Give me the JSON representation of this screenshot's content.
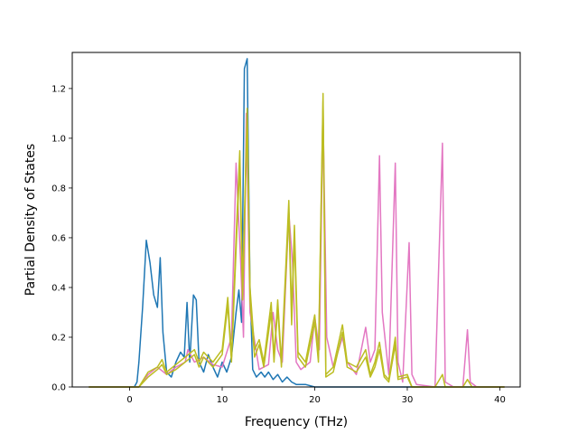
{
  "chart_data": {
    "type": "line",
    "title": "",
    "xlabel": "Frequency (THz)",
    "ylabel": "Partial Density of States",
    "xlim": [
      -6.2,
      42.2
    ],
    "ylim": [
      0,
      1.345
    ],
    "grid": false,
    "legend": "none",
    "x_ticks": [
      0,
      10,
      20,
      30,
      40
    ],
    "y_ticks": [
      0.0,
      0.2,
      0.4,
      0.6,
      0.8,
      1.0,
      1.2
    ],
    "x_tick_labels": [
      "0",
      "10",
      "20",
      "30",
      "40"
    ],
    "y_tick_labels": [
      "0.0",
      "0.2",
      "0.4",
      "0.6",
      "0.8",
      "1.0",
      "1.2"
    ],
    "series": [
      {
        "color": "#1f77b4",
        "points": [
          [
            -4.4,
            0
          ],
          [
            0.5,
            0
          ],
          [
            0.8,
            0.02
          ],
          [
            1.0,
            0.1
          ],
          [
            1.4,
            0.32
          ],
          [
            1.8,
            0.59
          ],
          [
            2.2,
            0.5
          ],
          [
            2.6,
            0.37
          ],
          [
            3.0,
            0.32
          ],
          [
            3.3,
            0.52
          ],
          [
            3.6,
            0.22
          ],
          [
            4.0,
            0.06
          ],
          [
            4.5,
            0.04
          ],
          [
            5.0,
            0.1
          ],
          [
            5.5,
            0.14
          ],
          [
            5.9,
            0.12
          ],
          [
            6.2,
            0.34
          ],
          [
            6.5,
            0.1
          ],
          [
            6.9,
            0.37
          ],
          [
            7.2,
            0.35
          ],
          [
            7.5,
            0.1
          ],
          [
            8.0,
            0.06
          ],
          [
            8.5,
            0.13
          ],
          [
            9.0,
            0.08
          ],
          [
            9.5,
            0.04
          ],
          [
            10.0,
            0.1
          ],
          [
            10.5,
            0.06
          ],
          [
            11.0,
            0.12
          ],
          [
            11.5,
            0.3
          ],
          [
            11.8,
            0.39
          ],
          [
            12.1,
            0.26
          ],
          [
            12.4,
            1.28
          ],
          [
            12.7,
            1.32
          ],
          [
            13.0,
            0.4
          ],
          [
            13.3,
            0.07
          ],
          [
            13.7,
            0.04
          ],
          [
            14.2,
            0.06
          ],
          [
            14.6,
            0.04
          ],
          [
            15.0,
            0.06
          ],
          [
            15.5,
            0.03
          ],
          [
            16.0,
            0.05
          ],
          [
            16.5,
            0.02
          ],
          [
            17.0,
            0.04
          ],
          [
            17.5,
            0.02
          ],
          [
            18.0,
            0.01
          ],
          [
            19.0,
            0.01
          ],
          [
            20.0,
            0
          ],
          [
            40.5,
            0
          ]
        ]
      },
      {
        "color": "#e377c2",
        "points": [
          [
            -4.4,
            0
          ],
          [
            1.0,
            0
          ],
          [
            2.0,
            0.05
          ],
          [
            3.0,
            0.08
          ],
          [
            4.0,
            0.05
          ],
          [
            5.0,
            0.08
          ],
          [
            6.0,
            0.1
          ],
          [
            6.3,
            0.15
          ],
          [
            7.0,
            0.1
          ],
          [
            8.0,
            0.12
          ],
          [
            9.0,
            0.09
          ],
          [
            10.0,
            0.08
          ],
          [
            11.0,
            0.2
          ],
          [
            11.5,
            0.9
          ],
          [
            12.0,
            0.5
          ],
          [
            12.3,
            0.2
          ],
          [
            12.6,
            1.1
          ],
          [
            13.0,
            0.3
          ],
          [
            14.0,
            0.07
          ],
          [
            15.0,
            0.09
          ],
          [
            15.5,
            0.3
          ],
          [
            16.0,
            0.15
          ],
          [
            16.5,
            0.1
          ],
          [
            17.2,
            0.7
          ],
          [
            17.6,
            0.5
          ],
          [
            18.0,
            0.1
          ],
          [
            18.5,
            0.07
          ],
          [
            19.5,
            0.1
          ],
          [
            20.0,
            0.28
          ],
          [
            20.5,
            0.15
          ],
          [
            20.9,
            1.1
          ],
          [
            21.3,
            0.2
          ],
          [
            22.0,
            0.08
          ],
          [
            23.0,
            0.2
          ],
          [
            23.5,
            0.1
          ],
          [
            24.5,
            0.05
          ],
          [
            25.5,
            0.24
          ],
          [
            26.0,
            0.1
          ],
          [
            26.5,
            0.15
          ],
          [
            27.0,
            0.93
          ],
          [
            27.3,
            0.3
          ],
          [
            28.0,
            0.05
          ],
          [
            28.7,
            0.9
          ],
          [
            29.0,
            0.1
          ],
          [
            29.5,
            0.02
          ],
          [
            30.2,
            0.58
          ],
          [
            30.5,
            0.05
          ],
          [
            31.0,
            0.01
          ],
          [
            33.0,
            0
          ],
          [
            33.8,
            0.98
          ],
          [
            34.1,
            0.02
          ],
          [
            35.0,
            0
          ],
          [
            36.0,
            0
          ],
          [
            36.5,
            0.23
          ],
          [
            36.8,
            0.02
          ],
          [
            37.5,
            0
          ],
          [
            40.5,
            0
          ]
        ]
      },
      {
        "color": "#bcbd22",
        "points": [
          [
            -4.4,
            0
          ],
          [
            1.0,
            0
          ],
          [
            2.0,
            0.06
          ],
          [
            3.0,
            0.08
          ],
          [
            3.5,
            0.11
          ],
          [
            4.0,
            0.06
          ],
          [
            5.0,
            0.09
          ],
          [
            6.0,
            0.12
          ],
          [
            7.0,
            0.15
          ],
          [
            7.5,
            0.1
          ],
          [
            8.0,
            0.14
          ],
          [
            9.0,
            0.1
          ],
          [
            10.0,
            0.15
          ],
          [
            10.6,
            0.36
          ],
          [
            11.0,
            0.12
          ],
          [
            11.5,
            0.6
          ],
          [
            11.9,
            0.95
          ],
          [
            12.2,
            0.4
          ],
          [
            12.7,
            1.12
          ],
          [
            13.0,
            0.4
          ],
          [
            13.5,
            0.15
          ],
          [
            14.0,
            0.19
          ],
          [
            14.5,
            0.1
          ],
          [
            15.3,
            0.34
          ],
          [
            15.6,
            0.12
          ],
          [
            16.0,
            0.35
          ],
          [
            16.4,
            0.1
          ],
          [
            17.2,
            0.75
          ],
          [
            17.5,
            0.3
          ],
          [
            17.8,
            0.65
          ],
          [
            18.2,
            0.14
          ],
          [
            19.0,
            0.1
          ],
          [
            20.0,
            0.29
          ],
          [
            20.4,
            0.12
          ],
          [
            20.9,
            1.18
          ],
          [
            21.2,
            0.05
          ],
          [
            22.0,
            0.08
          ],
          [
            23.0,
            0.25
          ],
          [
            23.5,
            0.1
          ],
          [
            24.5,
            0.08
          ],
          [
            25.5,
            0.15
          ],
          [
            26.0,
            0.05
          ],
          [
            26.5,
            0.1
          ],
          [
            27.0,
            0.18
          ],
          [
            27.5,
            0.05
          ],
          [
            28.0,
            0.03
          ],
          [
            28.7,
            0.2
          ],
          [
            29.0,
            0.04
          ],
          [
            30.0,
            0.05
          ],
          [
            30.5,
            0
          ],
          [
            33.0,
            0
          ],
          [
            33.8,
            0.05
          ],
          [
            34.1,
            0
          ],
          [
            36.0,
            0
          ],
          [
            36.5,
            0.03
          ],
          [
            37.0,
            0
          ],
          [
            40.5,
            0
          ]
        ]
      },
      {
        "color": "#bcbd22",
        "points": [
          [
            -4.4,
            0
          ],
          [
            1.0,
            0
          ],
          [
            2.0,
            0.04
          ],
          [
            3.0,
            0.07
          ],
          [
            3.5,
            0.09
          ],
          [
            4.0,
            0.05
          ],
          [
            5.0,
            0.07
          ],
          [
            6.0,
            0.1
          ],
          [
            7.0,
            0.13
          ],
          [
            7.5,
            0.08
          ],
          [
            8.0,
            0.12
          ],
          [
            9.0,
            0.08
          ],
          [
            10.0,
            0.13
          ],
          [
            10.6,
            0.33
          ],
          [
            11.0,
            0.1
          ],
          [
            11.5,
            0.55
          ],
          [
            11.9,
            0.9
          ],
          [
            12.2,
            0.35
          ],
          [
            12.7,
            1.08
          ],
          [
            13.0,
            0.35
          ],
          [
            13.5,
            0.12
          ],
          [
            14.0,
            0.17
          ],
          [
            14.5,
            0.08
          ],
          [
            15.3,
            0.3
          ],
          [
            15.6,
            0.1
          ],
          [
            16.0,
            0.32
          ],
          [
            16.4,
            0.08
          ],
          [
            17.2,
            0.7
          ],
          [
            17.5,
            0.25
          ],
          [
            17.8,
            0.6
          ],
          [
            18.2,
            0.12
          ],
          [
            19.0,
            0.08
          ],
          [
            20.0,
            0.26
          ],
          [
            20.4,
            0.1
          ],
          [
            20.9,
            1.15
          ],
          [
            21.2,
            0.04
          ],
          [
            22.0,
            0.06
          ],
          [
            23.0,
            0.22
          ],
          [
            23.5,
            0.08
          ],
          [
            24.5,
            0.06
          ],
          [
            25.5,
            0.12
          ],
          [
            26.0,
            0.04
          ],
          [
            26.5,
            0.08
          ],
          [
            27.0,
            0.15
          ],
          [
            27.5,
            0.04
          ],
          [
            28.0,
            0.02
          ],
          [
            28.7,
            0.17
          ],
          [
            29.0,
            0.03
          ],
          [
            30.0,
            0.04
          ],
          [
            30.5,
            0
          ],
          [
            40.5,
            0
          ]
        ]
      }
    ]
  }
}
